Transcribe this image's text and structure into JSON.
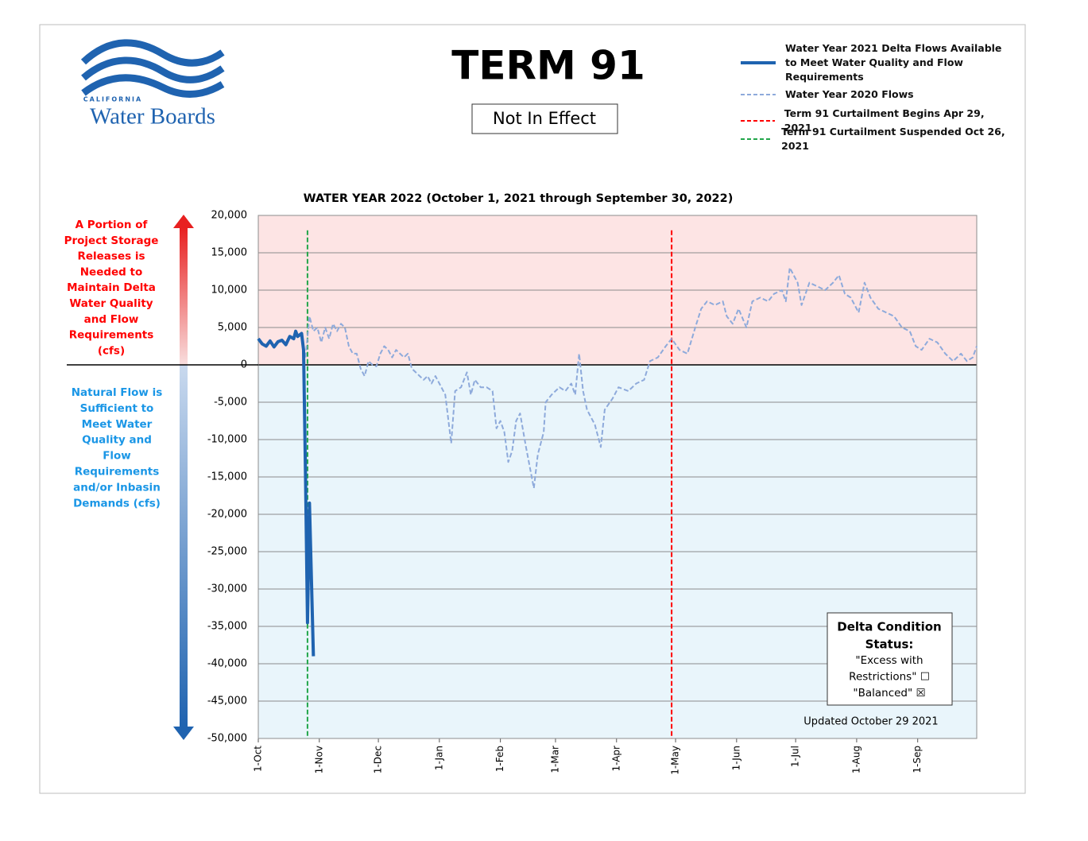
{
  "header": {
    "logo_small": "CALIFORNIA",
    "logo_main": "Water Boards",
    "title": "TERM 91",
    "status": "Not In Effect"
  },
  "left_notes": {
    "above": [
      "A Portion of",
      "Project Storage",
      "Releases is",
      "Needed to",
      "Maintain Delta",
      "Water Quality",
      "and Flow",
      "Requirements",
      "(cfs)"
    ],
    "below": [
      "Natural Flow is",
      "Sufficient to",
      "Meet Water",
      "Quality  and",
      "Flow",
      "Requirements",
      "and/or Inbasin",
      "Demands  (cfs)"
    ]
  },
  "status_box": {
    "title": [
      "Delta Condition",
      "Status:"
    ],
    "lines": [
      "\"Excess with",
      "Restrictions\" ☐",
      "\"Balanced\" ☒"
    ]
  },
  "updated": "Updated October 29 2021",
  "chart_data": {
    "type": "line",
    "title": "WATER YEAR 2022 (October 1, 2021 through September 30, 2022)",
    "xlim": [
      0,
      365
    ],
    "xticks": [
      {
        "value": 0,
        "label": "1-Oct"
      },
      {
        "value": 31,
        "label": "1-Nov"
      },
      {
        "value": 61,
        "label": "1-Dec"
      },
      {
        "value": 92,
        "label": "1-Jan"
      },
      {
        "value": 123,
        "label": "1-Feb"
      },
      {
        "value": 151,
        "label": "1-Mar"
      },
      {
        "value": 182,
        "label": "1-Apr"
      },
      {
        "value": 212,
        "label": "1-May"
      },
      {
        "value": 243,
        "label": "1-Jun"
      },
      {
        "value": 273,
        "label": "1-Jul"
      },
      {
        "value": 304,
        "label": "1-Aug"
      },
      {
        "value": 335,
        "label": "1-Sep"
      }
    ],
    "ylim": [
      -50000,
      20000
    ],
    "yticks": [
      {
        "value": -50000,
        "label": "-50,000"
      },
      {
        "value": -45000,
        "label": "-45,000"
      },
      {
        "value": -40000,
        "label": "-40,000"
      },
      {
        "value": -35000,
        "label": "-35,000"
      },
      {
        "value": -30000,
        "label": "-30,000"
      },
      {
        "value": -25000,
        "label": "-25,000"
      },
      {
        "value": -20000,
        "label": "-20,000"
      },
      {
        "value": -15000,
        "label": "-15,000"
      },
      {
        "value": -10000,
        "label": "-10,000"
      },
      {
        "value": -5000,
        "label": "-5,000"
      },
      0,
      {
        "value": 5000,
        "label": "5,000"
      },
      {
        "value": 10000,
        "label": "10,000"
      },
      {
        "value": 15000,
        "label": "15,000"
      },
      {
        "value": 20000,
        "label": "20,000"
      }
    ],
    "grid": true,
    "positive_fill": "#fde4e4",
    "negative_fill": "#e9f5fb",
    "legend": "top-right",
    "series": [
      {
        "name": "Water Year 2021 Delta Flows Available to Meet Water Quality and Flow Requirements",
        "color": "#1f63b0",
        "style": "solid",
        "x": [
          0,
          2,
          4,
          6,
          8,
          10,
          12,
          14,
          16,
          18,
          19,
          20,
          22,
          23,
          24,
          25,
          26,
          28
        ],
        "values": [
          3500,
          2800,
          2500,
          3200,
          2400,
          3100,
          3300,
          2700,
          3800,
          3500,
          4500,
          3800,
          4200,
          2000,
          -15000,
          -34500,
          -18500,
          -39000
        ]
      },
      {
        "name": "Water Year 2020 Flows",
        "color": "#8eaadb",
        "style": "dashed",
        "x": [
          24,
          26,
          28,
          30,
          32,
          34,
          36,
          38,
          40,
          42,
          44,
          46,
          48,
          50,
          52,
          54,
          56,
          58,
          60,
          62,
          64,
          66,
          68,
          70,
          72,
          74,
          76,
          78,
          80,
          82,
          84,
          86,
          88,
          90,
          92,
          95,
          98,
          100,
          103,
          106,
          108,
          110,
          113,
          116,
          119,
          121,
          123,
          125,
          127,
          129,
          131,
          133,
          136,
          140,
          142,
          145,
          146,
          149,
          153,
          156,
          159,
          161,
          163,
          165,
          167,
          171,
          174,
          176,
          180,
          183,
          188,
          192,
          196,
          199,
          203,
          207,
          210,
          214,
          218,
          222,
          225,
          228,
          232,
          236,
          238,
          241,
          244,
          248,
          251,
          255,
          259,
          262,
          266,
          268,
          270,
          274,
          276,
          280,
          284,
          288,
          292,
          295,
          298,
          301,
          305,
          308,
          311,
          315,
          319,
          323,
          327,
          331,
          334,
          337,
          341,
          345,
          349,
          353,
          357,
          360,
          363,
          365
        ],
        "values": [
          1000,
          6500,
          4500,
          5000,
          3000,
          5000,
          3500,
          5500,
          4500,
          5500,
          5000,
          2500,
          1500,
          1500,
          -500,
          -1500,
          500,
          0,
          -200,
          1500,
          2500,
          2000,
          1000,
          2000,
          1500,
          1000,
          1500,
          -500,
          -1000,
          -1500,
          -2000,
          -1500,
          -2500,
          -1500,
          -2500,
          -4000,
          -10500,
          -3500,
          -3000,
          -1000,
          -4000,
          -2000,
          -3000,
          -3000,
          -3500,
          -8500,
          -7500,
          -9000,
          -13000,
          -11500,
          -7500,
          -6500,
          -11000,
          -16500,
          -12000,
          -9000,
          -5000,
          -4000,
          -3000,
          -3500,
          -2500,
          -4000,
          1500,
          -3500,
          -6000,
          -8000,
          -11000,
          -6000,
          -4500,
          -3000,
          -3500,
          -2500,
          -2000,
          500,
          1000,
          2500,
          3500,
          2000,
          1500,
          5000,
          7500,
          8500,
          8000,
          8500,
          6500,
          5500,
          7500,
          5000,
          8500,
          9000,
          8500,
          9500,
          10000,
          8500,
          13000,
          11000,
          8000,
          11000,
          10500,
          10000,
          11000,
          12000,
          9500,
          9000,
          7000,
          11000,
          9000,
          7500,
          7000,
          6500,
          5000,
          4500,
          2500,
          2000,
          3500,
          3000,
          1500,
          500,
          1500,
          500,
          1000,
          2500
        ]
      }
    ],
    "vlines": [
      {
        "name": "Term 91 Curtailment Begins Apr 29, 2021",
        "x": 210,
        "color": "#ff0000"
      },
      {
        "name": "Term 91 Curtailment Suspended Oct 26, 2021",
        "x": 25,
        "color": "#22a64a"
      }
    ]
  }
}
